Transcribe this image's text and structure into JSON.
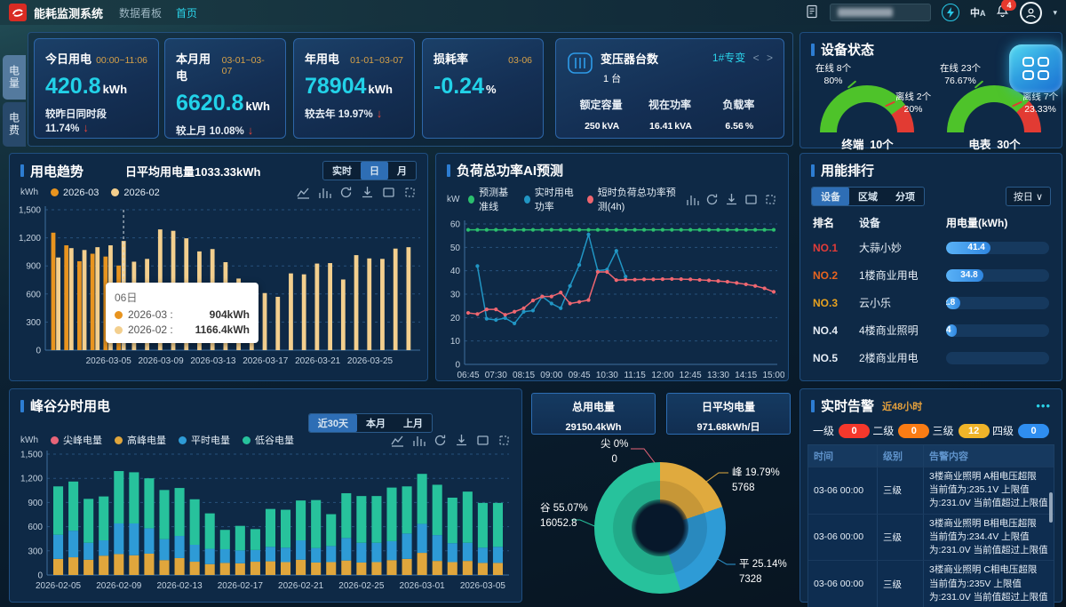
{
  "icons": {
    "down_arrow": "↓",
    "caret_down": "▾",
    "chevron_left": "<",
    "chevron_right": ">",
    "select_caret": "∨",
    "more": "•••",
    "translate_zh": "中",
    "translate_a": "A"
  },
  "nav": {
    "brand": "能耗监测系统",
    "menu_dashboard": "数据看板",
    "menu_home": "首页",
    "notification_count": "4"
  },
  "sidebar": {
    "tabs": [
      {
        "label": "电量"
      },
      {
        "label": "电费"
      }
    ],
    "active_tab": "电量"
  },
  "stat_cards": [
    {
      "title": "今日用电",
      "period": "00:00~11:06",
      "value": "420.8",
      "unit": "kWh",
      "compare_label": "较昨日同时段",
      "compare_value": "11.74%"
    },
    {
      "title": "本月用电",
      "period": "03-01~03-07",
      "value": "6620.8",
      "unit": "kWh",
      "compare_label": "较上月",
      "compare_value": "10.08%"
    },
    {
      "title": "年用电",
      "period": "01-01~03-07",
      "value": "78904",
      "unit": "kWh",
      "compare_label": "较去年",
      "compare_value": "19.97%"
    },
    {
      "title": "损耗率",
      "period": "03-06",
      "value": "-0.24",
      "unit": "%"
    }
  ],
  "transformer": {
    "title": "变压器台数",
    "count": "1",
    "count_unit": "台",
    "selected": "1#专变",
    "metrics": [
      {
        "label": "额定容量",
        "value": "250",
        "unit": "kVA"
      },
      {
        "label": "视在功率",
        "value": "16.41",
        "unit": "kVA"
      },
      {
        "label": "负载率",
        "value": "6.56",
        "unit": "%"
      }
    ]
  },
  "device_status": {
    "title": "设备状态",
    "online_color": "#4ec32a",
    "offline_color": "#e23b33",
    "gauges": [
      {
        "name": "终端",
        "total": "10个",
        "online_label": "在线 8个",
        "online_pct": "80%",
        "offline_label": "离线 2个",
        "offline_pct": "20%",
        "online_ratio": 0.8
      },
      {
        "name": "电表",
        "total": "30个",
        "online_label": "在线 23个",
        "online_pct": "76.67%",
        "offline_label": "离线 7个",
        "offline_pct": "23.33%",
        "online_ratio": 0.7667
      }
    ]
  },
  "trend_panel": {
    "title": "用电趋势",
    "subtitle": "日平均用电量1033.33kWh",
    "range_buttons": [
      "实时",
      "日",
      "月"
    ],
    "active_range": "日",
    "y_unit": "kWh",
    "chart_data": {
      "type": "bar",
      "ylim": [
        0,
        1500
      ],
      "y_ticks": [
        "0",
        "300",
        "600",
        "900",
        "1,200",
        "1,500"
      ],
      "x_tick_labels": [
        "2026-03-05",
        "2026-03-09",
        "2026-03-13",
        "2026-03-17",
        "2026-03-21",
        "2026-03-25"
      ],
      "x_tick_positions": [
        4,
        8,
        12,
        16,
        20,
        24
      ],
      "series": [
        {
          "name": "2026-03",
          "color": "#e8941f",
          "values": [
            1255,
            1120,
            950,
            1030,
            1000,
            904
          ]
        },
        {
          "name": "2026-02",
          "color": "#f3cf8e",
          "values": [
            990,
            1090,
            1070,
            1100,
            1120,
            1166.4,
            945,
            975,
            1290,
            1275,
            1195,
            1055,
            1080,
            940,
            765,
            560,
            610,
            570,
            820,
            810,
            925,
            930,
            755,
            1015,
            980,
            975,
            1085,
            1100
          ]
        }
      ]
    },
    "tooltip": {
      "title": "06日",
      "day_index": 5,
      "rows": [
        {
          "label": "2026-03 :",
          "value": "904kWh",
          "color": "#e8941f"
        },
        {
          "label": "2026-02 :",
          "value": "1166.4kWh",
          "color": "#f3cf8e"
        }
      ]
    }
  },
  "forecast_panel": {
    "title": "负荷总功率AI预测",
    "y_unit": "kW",
    "chart_data": {
      "type": "line",
      "ylim": [
        0,
        60
      ],
      "y_ticks": [
        0,
        10,
        20,
        30,
        40,
        50,
        60
      ],
      "x_labels": [
        "06:45",
        "07:30",
        "08:15",
        "09:00",
        "09:45",
        "10:30",
        "11:15",
        "12:00",
        "12:45",
        "13:30",
        "14:15",
        "15:00"
      ],
      "points_per_label": 3,
      "series": [
        {
          "name": "预测基准线",
          "color": "#2bbf6e",
          "start": 0,
          "values": [
            57.5,
            57.5,
            57.5,
            57.5,
            57.5,
            57.5,
            57.5,
            57.5,
            57.5,
            57.5,
            57.5,
            57.5,
            57.5,
            57.5,
            57.5,
            57.5,
            57.5,
            57.5,
            57.5,
            57.5,
            57.5,
            57.5,
            57.5,
            57.5,
            57.5,
            57.5,
            57.5,
            57.5,
            57.5,
            57.5,
            57.5,
            57.5,
            57.5,
            57.5
          ]
        },
        {
          "name": "实时用电功率",
          "color": "#2196c4",
          "start": 1,
          "values": [
            42,
            19.5,
            19,
            19.8,
            17.5,
            22.5,
            23,
            29,
            26,
            24,
            33.5,
            42.5,
            55.5,
            40,
            40.5,
            48.5,
            37.5
          ]
        },
        {
          "name": "短时负荷总功率预测(4h)",
          "color": "#ef6670",
          "start": 0,
          "values": [
            22,
            21.5,
            23.5,
            23.5,
            21.2,
            22.5,
            24,
            27.3,
            29,
            29,
            30.7,
            26,
            26.7,
            27.5,
            39.5,
            39.5,
            36,
            36.2,
            36.2,
            36.3,
            36.3,
            36.4,
            36.5,
            36.4,
            36.3,
            36.1,
            35.9,
            35.6,
            35.3,
            34.8,
            34.2,
            33.5,
            32.5,
            31
          ]
        }
      ]
    }
  },
  "ranking_panel": {
    "title": "用能排行",
    "tabs": [
      "设备",
      "区域",
      "分项"
    ],
    "active_tab": "设备",
    "period_select": "按日",
    "columns": [
      "排名",
      "设备",
      "用电量(kWh)"
    ],
    "rows": [
      {
        "rank": "NO.1",
        "rank_color": "#e23c39",
        "name": "大蒜小妙",
        "value": "41.4",
        "pct": 43
      },
      {
        "rank": "NO.2",
        "rank_color": "#e8641f",
        "name": "1楼商业用电",
        "value": "34.8",
        "pct": 36
      },
      {
        "rank": "NO.3",
        "rank_color": "#e8a21f",
        "name": "云小乐",
        "value": "12.8",
        "pct": 14
      },
      {
        "rank": "NO.4",
        "rank_color": "#e6edf5",
        "name": "4楼商业照明",
        "value": "8.4",
        "pct": 10
      },
      {
        "rank": "NO.5",
        "rank_color": "#e6edf5",
        "name": "2楼商业用电",
        "value": "",
        "pct": 0
      }
    ]
  },
  "peak_panel": {
    "title": "峰谷分时用电",
    "range_buttons": [
      "近30天",
      "本月",
      "上月"
    ],
    "active_range": "近30天",
    "y_unit": "kWh",
    "chart_data": {
      "type": "stacked-bar",
      "ylim": [
        0,
        1500
      ],
      "y_ticks": [
        "0",
        "300",
        "600",
        "900",
        "1,200",
        "1,500"
      ],
      "x_tick_labels": [
        "2026-02-05",
        "2026-02-09",
        "2026-02-13",
        "2026-02-17",
        "2026-02-21",
        "2026-02-25",
        "2026-03-01",
        "2026-03-05"
      ],
      "x_tick_positions": [
        0,
        4,
        8,
        12,
        16,
        20,
        24,
        28
      ],
      "series": [
        {
          "name": "尖峰电量",
          "color": "#e86478",
          "values": [
            0,
            0,
            0,
            0,
            0,
            0,
            0,
            0,
            0,
            0,
            0,
            0,
            0,
            0,
            0,
            0,
            0,
            0,
            0,
            0,
            0,
            0,
            0,
            0,
            0,
            0,
            0,
            0,
            0,
            0
          ]
        },
        {
          "name": "高峰电量",
          "color": "#e0a63c",
          "values": [
            200,
            220,
            190,
            240,
            260,
            245,
            265,
            185,
            210,
            165,
            135,
            150,
            145,
            165,
            170,
            160,
            190,
            155,
            160,
            180,
            155,
            160,
            185,
            200,
            275,
            175,
            160,
            175,
            150,
            150
          ]
        },
        {
          "name": "平时电量",
          "color": "#2e9bd6",
          "values": [
            300,
            330,
            210,
            190,
            380,
            395,
            315,
            260,
            275,
            210,
            190,
            170,
            160,
            145,
            180,
            180,
            240,
            180,
            200,
            280,
            245,
            240,
            235,
            315,
            360,
            320,
            235,
            225,
            190,
            200
          ]
        },
        {
          "name": "低谷电量",
          "color": "#27c29c",
          "values": [
            600,
            610,
            545,
            545,
            650,
            635,
            620,
            610,
            595,
            565,
            440,
            240,
            305,
            260,
            470,
            470,
            495,
            595,
            395,
            555,
            580,
            580,
            665,
            585,
            620,
            625,
            565,
            635,
            555,
            545
          ]
        }
      ]
    }
  },
  "summary": {
    "total": {
      "label": "总用电量",
      "value": "29150.4",
      "unit": "kWh"
    },
    "daily_avg": {
      "label": "日平均电量",
      "value": "971.68",
      "unit": "kWh/日"
    }
  },
  "donut": {
    "type": "pie",
    "slices": [
      {
        "name": "尖",
        "pct_label": "尖 0%",
        "value": "0",
        "pct_num": 0,
        "color": "#e86478"
      },
      {
        "name": "峰",
        "pct_label": "峰 19.79%",
        "value": "5768",
        "pct_num": 19.79,
        "color": "#e0aa3e"
      },
      {
        "name": "平",
        "pct_label": "平 25.14%",
        "value": "7328",
        "pct_num": 25.14,
        "color": "#2e9bd6"
      },
      {
        "name": "谷",
        "pct_label": "谷 55.07%",
        "value": "16052.8",
        "pct_num": 55.07,
        "color": "#27c29c"
      }
    ]
  },
  "alarms_panel": {
    "title": "实时告警",
    "subtitle": "近48小时",
    "levels": [
      {
        "label": "一级",
        "count": "0",
        "color": "#f5382c"
      },
      {
        "label": "二级",
        "count": "0",
        "color": "#fa7c14"
      },
      {
        "label": "三级",
        "count": "12",
        "color": "#f0b429"
      },
      {
        "label": "四级",
        "count": "0",
        "color": "#2f8ef0"
      }
    ],
    "columns": [
      "时间",
      "级别",
      "告警内容"
    ],
    "rows": [
      {
        "time": "03-06 00:00",
        "level": "三级",
        "content": "3楼商业照明 A相电压超限 当前值为:235.1V 上限值为:231.0V 当前值超过上限值"
      },
      {
        "time": "03-06 00:00",
        "level": "三级",
        "content": "3楼商业照明 B相电压超限 当前值为:234.4V 上限值为:231.0V 当前值超过上限值"
      },
      {
        "time": "03-06 00:00",
        "level": "三级",
        "content": "3楼商业照明 C相电压超限 当前值为:235V 上限值为:231.0V 当前值超过上限值"
      }
    ]
  }
}
